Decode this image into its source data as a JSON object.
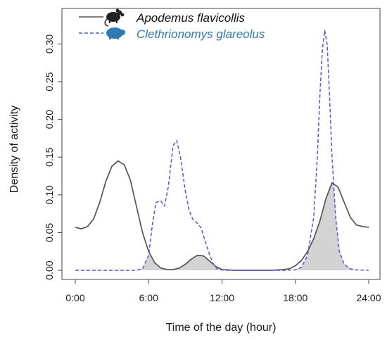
{
  "chart_data": {
    "type": "line",
    "xlabel": "Time of the day (hour)",
    "ylabel": "Density of activity",
    "xlim": [
      0,
      24
    ],
    "ylim": [
      0,
      0.32
    ],
    "x_ticks": [
      0,
      6,
      12,
      18,
      24
    ],
    "x_tick_labels": [
      "0:00",
      "6:00",
      "12:00",
      "18:00",
      "24:00"
    ],
    "y_ticks": [
      0,
      0.05,
      0.1,
      0.15,
      0.2,
      0.25,
      0.3
    ],
    "y_tick_labels": [
      "0.00",
      "0.05",
      "0.10",
      "0.15",
      "0.20",
      "0.25",
      "0.30"
    ],
    "grid": false,
    "legend_position": "top-left",
    "overlap_fill": "#d3d3d3",
    "series": [
      {
        "name": "Apodemus flavicollis",
        "color": "#555555",
        "line_style": "solid",
        "icon": "mouse-icon",
        "x": [
          0,
          0.5,
          1,
          1.5,
          2,
          2.5,
          3,
          3.5,
          4,
          4.5,
          5,
          5.5,
          6,
          6.5,
          7,
          7.5,
          8,
          8.5,
          9,
          9.5,
          10,
          10.5,
          11,
          11.5,
          12,
          12.5,
          13,
          14,
          15,
          16,
          17,
          17.5,
          18,
          18.5,
          19,
          19.5,
          20,
          20.5,
          21,
          21.5,
          22,
          22.5,
          23,
          23.5,
          24
        ],
        "y": [
          0.057,
          0.055,
          0.058,
          0.068,
          0.09,
          0.118,
          0.138,
          0.145,
          0.14,
          0.12,
          0.085,
          0.05,
          0.025,
          0.01,
          0.003,
          0.001,
          0.001,
          0.003,
          0.008,
          0.015,
          0.02,
          0.019,
          0.012,
          0.005,
          0.001,
          0.0005,
          0.0,
          0.0,
          0.0,
          0.0,
          0.001,
          0.002,
          0.006,
          0.013,
          0.025,
          0.042,
          0.065,
          0.095,
          0.116,
          0.11,
          0.09,
          0.07,
          0.06,
          0.058,
          0.057
        ]
      },
      {
        "name": "Clethrionomys glareolus",
        "color": "#5555e0",
        "line_style": "dashed",
        "icon": "vole-icon",
        "x": [
          0,
          1,
          2,
          3,
          4,
          5,
          5.5,
          6,
          6.3,
          6.6,
          7,
          7.3,
          7.6,
          8,
          8.3,
          8.6,
          9,
          9.3,
          9.6,
          10,
          10.3,
          10.6,
          11,
          11.3,
          11.6,
          12,
          12.5,
          13,
          14,
          15,
          16,
          17,
          18,
          18.5,
          19,
          19.5,
          19.8,
          20,
          20.2,
          20.4,
          20.6,
          20.8,
          21,
          21.3,
          21.6,
          22,
          22.5,
          23,
          24
        ],
        "y": [
          0,
          0,
          0,
          0,
          0,
          0,
          0.002,
          0.02,
          0.06,
          0.09,
          0.092,
          0.085,
          0.11,
          0.165,
          0.172,
          0.15,
          0.105,
          0.08,
          0.068,
          0.062,
          0.056,
          0.04,
          0.02,
          0.008,
          0.002,
          0.0005,
          0,
          0,
          0,
          0,
          0,
          0,
          0.0005,
          0.004,
          0.02,
          0.07,
          0.15,
          0.23,
          0.29,
          0.318,
          0.3,
          0.23,
          0.15,
          0.07,
          0.025,
          0.008,
          0.002,
          0.0005,
          0
        ]
      }
    ]
  }
}
